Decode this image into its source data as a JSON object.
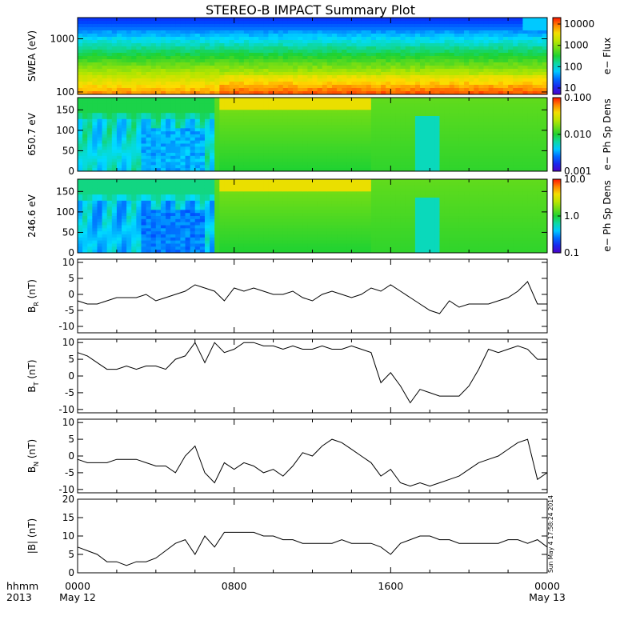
{
  "title": "STEREO-B IMPACT Summary Plot",
  "x_axis": {
    "row1_label": "hhmm",
    "row2_label": "2013",
    "ticks": [
      {
        "hour": 0,
        "time": "0000",
        "date": "May 12"
      },
      {
        "hour": 8,
        "time": "0800",
        "date": ""
      },
      {
        "hour": 16,
        "time": "1600",
        "date": ""
      },
      {
        "hour": 24,
        "time": "0000",
        "date": "May 13"
      }
    ]
  },
  "timestamp": "Sun May  4 17:58:24 2014",
  "colors": {
    "line": "#000000",
    "background": "#ffffff"
  },
  "chart_data": [
    {
      "type": "heatmap",
      "ylabel": "SWEA (eV)",
      "yscale": "log",
      "ylim": [
        90,
        2500
      ],
      "yticks": [
        {
          "v": 100,
          "label": "100"
        },
        {
          "v": 1000,
          "label": "1000"
        }
      ],
      "colorbar": {
        "label": "e− Flux",
        "scale": "log",
        "range": [
          5,
          20000
        ],
        "ticks": [
          {
            "v": 10,
            "label": "10"
          },
          {
            "v": 100,
            "label": "100"
          },
          {
            "v": 1000,
            "label": "1000"
          },
          {
            "v": 10000,
            "label": "10000"
          }
        ]
      },
      "description_values": {
        "low_energy_flux": 5000,
        "high_energy_flux": 8
      }
    },
    {
      "type": "heatmap",
      "ylabel": "650.7 eV",
      "yscale": "linear",
      "ylim": [
        0,
        180
      ],
      "yticks": [
        {
          "v": 0,
          "label": "0"
        },
        {
          "v": 50,
          "label": "50"
        },
        {
          "v": 100,
          "label": "100"
        },
        {
          "v": 150,
          "label": "150"
        }
      ],
      "colorbar": {
        "label": "e− Ph Sp Dens",
        "scale": "log",
        "range": [
          0.001,
          0.1
        ],
        "ticks": [
          {
            "v": 0.001,
            "label": "0.001"
          },
          {
            "v": 0.01,
            "label": "0.010"
          },
          {
            "v": 0.1,
            "label": "0.100"
          }
        ]
      }
    },
    {
      "type": "heatmap",
      "ylabel": "246.6 eV",
      "yscale": "linear",
      "ylim": [
        0,
        180
      ],
      "yticks": [
        {
          "v": 0,
          "label": "0"
        },
        {
          "v": 50,
          "label": "50"
        },
        {
          "v": 100,
          "label": "100"
        },
        {
          "v": 150,
          "label": "150"
        }
      ],
      "colorbar": {
        "label": "e− Ph Sp Dens",
        "scale": "log",
        "range": [
          0.1,
          10
        ],
        "ticks": [
          {
            "v": 0.1,
            "label": "0.1"
          },
          {
            "v": 1,
            "label": "1.0"
          },
          {
            "v": 10,
            "label": "10.0"
          }
        ]
      }
    },
    {
      "type": "line",
      "ylabel": "B",
      "ylabel_sub": "R",
      "ylabel_unit": " (nT)",
      "ylim": [
        -12,
        11
      ],
      "yticks": [
        -10,
        -5,
        0,
        5,
        10
      ],
      "x": [
        0,
        0.5,
        1,
        1.5,
        2,
        2.5,
        3,
        3.5,
        4,
        4.5,
        5,
        5.5,
        6,
        6.5,
        7,
        7.5,
        8,
        8.5,
        9,
        9.5,
        10,
        10.5,
        11,
        11.5,
        12,
        12.5,
        13,
        13.5,
        14,
        14.5,
        15,
        15.5,
        16,
        16.5,
        17,
        17.5,
        18,
        18.5,
        19,
        19.5,
        20,
        20.5,
        21,
        21.5,
        22,
        22.5,
        23,
        23.5,
        24
      ],
      "y": [
        -2,
        -3,
        -3,
        -2,
        -1,
        -1,
        -1,
        0,
        -2,
        -1,
        0,
        1,
        3,
        2,
        1,
        -2,
        2,
        1,
        2,
        1,
        0,
        0,
        1,
        -1,
        -2,
        0,
        1,
        0,
        -1,
        0,
        2,
        1,
        3,
        1,
        -1,
        -3,
        -5,
        -6,
        -2,
        -4,
        -3,
        -3,
        -3,
        -2,
        -1,
        1,
        4,
        -3,
        -3
      ]
    },
    {
      "type": "line",
      "ylabel": "B",
      "ylabel_sub": "T",
      "ylabel_unit": " (nT)",
      "ylim": [
        -11,
        11
      ],
      "yticks": [
        -10,
        -5,
        0,
        5,
        10
      ],
      "x": [
        0,
        0.5,
        1,
        1.5,
        2,
        2.5,
        3,
        3.5,
        4,
        4.5,
        5,
        5.5,
        6,
        6.5,
        7,
        7.5,
        8,
        8.5,
        9,
        9.5,
        10,
        10.5,
        11,
        11.5,
        12,
        12.5,
        13,
        13.5,
        14,
        14.5,
        15,
        15.5,
        16,
        16.5,
        17,
        17.5,
        18,
        18.5,
        19,
        19.5,
        20,
        20.5,
        21,
        21.5,
        22,
        22.5,
        23,
        23.5,
        24
      ],
      "y": [
        7,
        6,
        4,
        2,
        2,
        3,
        2,
        3,
        3,
        2,
        5,
        6,
        10,
        4,
        10,
        7,
        8,
        10,
        10,
        9,
        9,
        8,
        9,
        8,
        8,
        9,
        8,
        8,
        9,
        8,
        7,
        -2,
        1,
        -3,
        -8,
        -4,
        -5,
        -6,
        -6,
        -6,
        -3,
        2,
        8,
        7,
        8,
        9,
        8,
        5,
        5
      ]
    },
    {
      "type": "line",
      "ylabel": "B",
      "ylabel_sub": "N",
      "ylabel_unit": " (nT)",
      "ylim": [
        -11,
        11
      ],
      "yticks": [
        -10,
        -5,
        0,
        5,
        10
      ],
      "x": [
        0,
        0.5,
        1,
        1.5,
        2,
        2.5,
        3,
        3.5,
        4,
        4.5,
        5,
        5.5,
        6,
        6.5,
        7,
        7.5,
        8,
        8.5,
        9,
        9.5,
        10,
        10.5,
        11,
        11.5,
        12,
        12.5,
        13,
        13.5,
        14,
        14.5,
        15,
        15.5,
        16,
        16.5,
        17,
        17.5,
        18,
        18.5,
        19,
        19.5,
        20,
        20.5,
        21,
        21.5,
        22,
        22.5,
        23,
        23.5,
        24
      ],
      "y": [
        -1,
        -2,
        -2,
        -2,
        -1,
        -1,
        -1,
        -2,
        -3,
        -3,
        -5,
        0,
        3,
        -5,
        -8,
        -2,
        -4,
        -2,
        -3,
        -5,
        -4,
        -6,
        -3,
        1,
        0,
        3,
        5,
        4,
        2,
        0,
        -2,
        -6,
        -4,
        -8,
        -9,
        -8,
        -9,
        -8,
        -7,
        -6,
        -4,
        -2,
        -1,
        0,
        2,
        4,
        5,
        -7,
        -5
      ]
    },
    {
      "type": "line",
      "ylabel": "|B| (nT)",
      "ylim": [
        0,
        20
      ],
      "yticks": [
        0,
        5,
        10,
        15,
        20
      ],
      "x": [
        0,
        0.5,
        1,
        1.5,
        2,
        2.5,
        3,
        3.5,
        4,
        4.5,
        5,
        5.5,
        6,
        6.5,
        7,
        7.5,
        8,
        8.5,
        9,
        9.5,
        10,
        10.5,
        11,
        11.5,
        12,
        12.5,
        13,
        13.5,
        14,
        14.5,
        15,
        15.5,
        16,
        16.5,
        17,
        17.5,
        18,
        18.5,
        19,
        19.5,
        20,
        20.5,
        21,
        21.5,
        22,
        22.5,
        23,
        23.5,
        24
      ],
      "y": [
        7,
        6,
        5,
        3,
        3,
        2,
        3,
        3,
        4,
        6,
        8,
        9,
        5,
        10,
        7,
        11,
        11,
        11,
        11,
        10,
        10,
        9,
        9,
        8,
        8,
        8,
        8,
        9,
        8,
        8,
        8,
        7,
        5,
        8,
        9,
        10,
        10,
        9,
        9,
        8,
        8,
        8,
        8,
        8,
        9,
        9,
        8,
        9,
        7
      ]
    }
  ]
}
